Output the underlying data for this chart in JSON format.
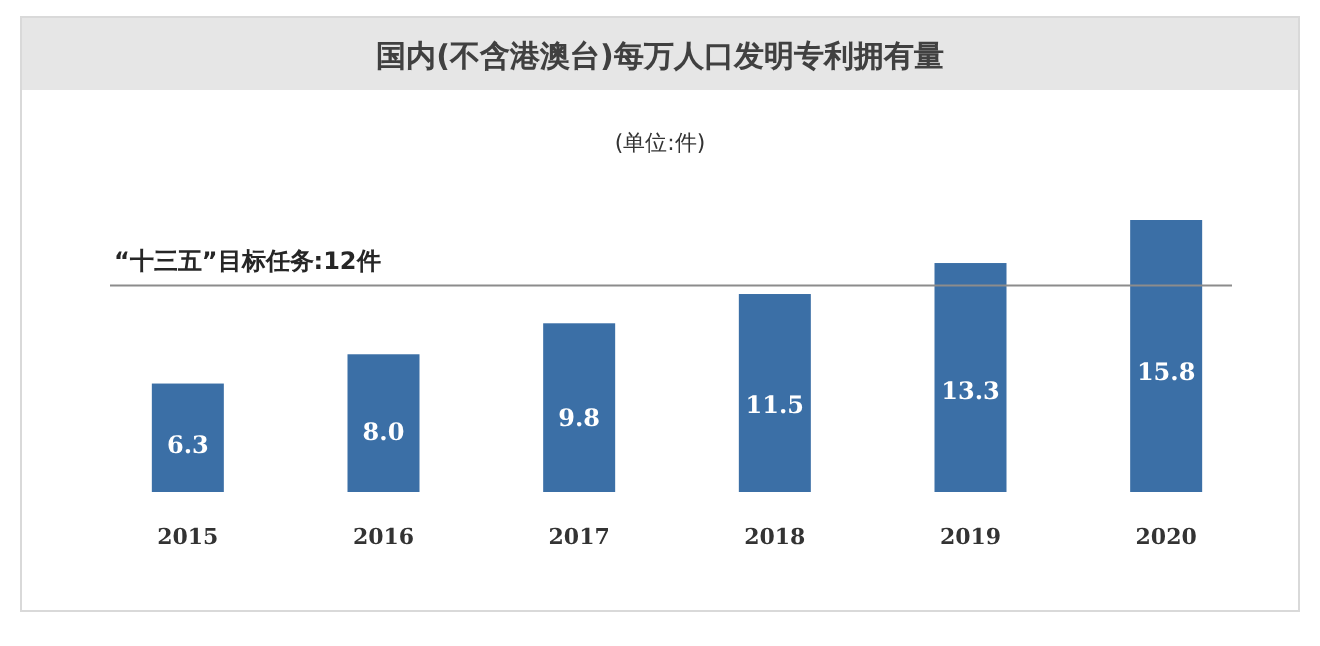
{
  "chart_data": {
    "type": "bar",
    "title": "国内(不含港澳台)每万人口发明专利拥有量",
    "subtitle": "(单位:件)",
    "categories": [
      "2015",
      "2016",
      "2017",
      "2018",
      "2019",
      "2020"
    ],
    "values": [
      6.3,
      8.0,
      9.8,
      11.5,
      13.3,
      15.8
    ],
    "value_labels": [
      "6.3",
      "8.0",
      "9.8",
      "11.5",
      "13.3",
      "15.8"
    ],
    "color": "#3b6fa6",
    "tick_labels": "x",
    "grid": false,
    "ref_lines": [
      {
        "axis": "y",
        "value": 12,
        "label": "“十三五”目标任务:12件",
        "color": "#8c8c8c",
        "line_style": "solid"
      }
    ]
  }
}
